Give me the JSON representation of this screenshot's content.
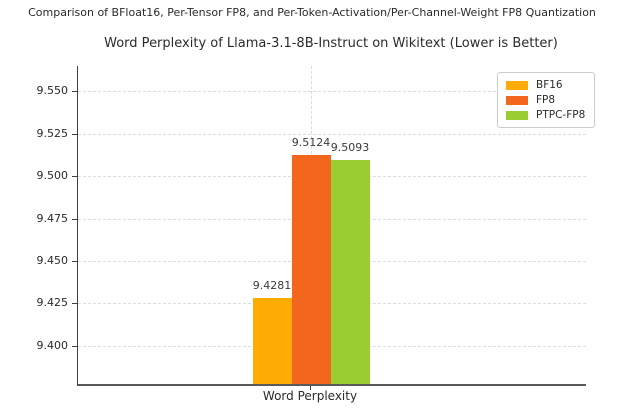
{
  "header": {
    "suptitle": "Comparison of BFloat16, Per-Tensor FP8, and Per-Token-Activation/Per-Channel-Weight FP8 Quantization"
  },
  "chart_data": {
    "type": "bar",
    "title": "Word Perplexity of Llama-3.1-8B-Instruct on Wikitext (Lower is Better)",
    "suptitle": "Comparison of BFloat16, Per-Tensor FP8, and Per-Token-Activation/Per-Channel-Weight FP8 Quantization",
    "categories": [
      "Word Perplexity"
    ],
    "series": [
      {
        "name": "BF16",
        "values": [
          9.4281
        ],
        "color": "#FFAB05"
      },
      {
        "name": "FP8",
        "values": [
          9.5124
        ],
        "color": "#F2661E"
      },
      {
        "name": "PTPC-FP8",
        "values": [
          9.5093
        ],
        "color": "#9ACD32"
      }
    ],
    "bar_value_labels": [
      "9.4281",
      "9.5124",
      "9.5093"
    ],
    "xlabel": "",
    "ylabel": "",
    "ylim": [
      9.3775,
      9.565
    ],
    "yticks": [
      9.4,
      9.425,
      9.45,
      9.475,
      9.5,
      9.525,
      9.55
    ],
    "ytick_labels": [
      "9.400",
      "9.425",
      "9.450",
      "9.475",
      "9.500",
      "9.525",
      "9.550"
    ],
    "grid": true,
    "grid_style": "dashed",
    "legend_position": "upper right",
    "spines": [
      "left",
      "bottom"
    ]
  }
}
